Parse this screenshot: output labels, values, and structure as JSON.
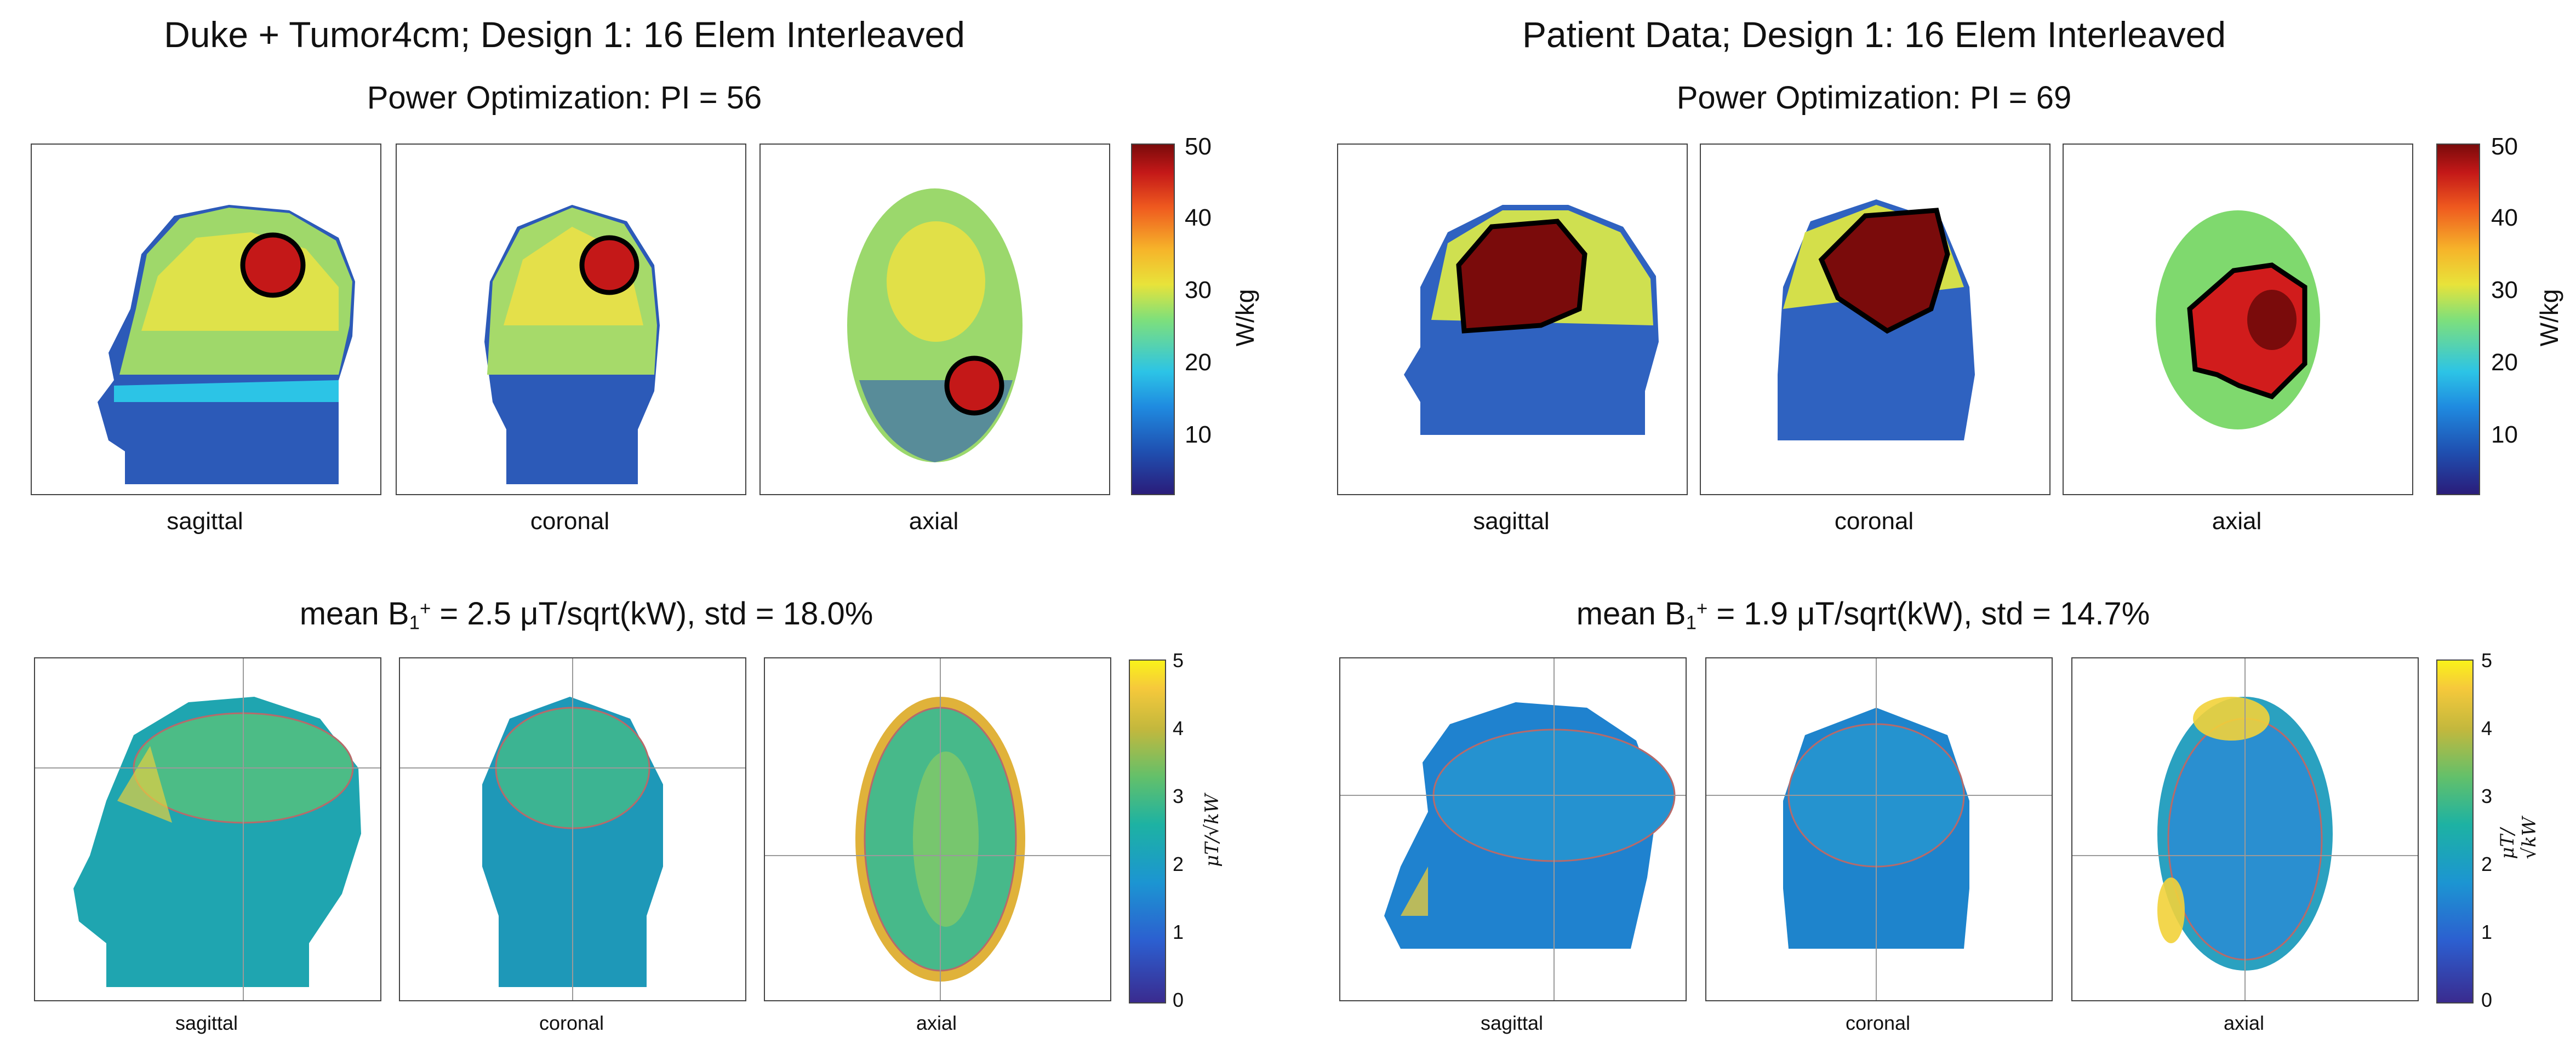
{
  "left": {
    "title": "Duke + Tumor4cm; Design 1: 16 Elem Interleaved",
    "power_title": "Power Optimization: PI = 56",
    "b1_title": {
      "prefix": "mean B",
      "sub": "1",
      "sup": "+",
      "suffix": " = 2.5 μT/sqrt(kW), std = 18.0%"
    },
    "views_top": [
      "sagittal",
      "coronal",
      "axial"
    ],
    "views_bottom": [
      "sagittal",
      "coronal",
      "axial"
    ]
  },
  "right": {
    "title": "Patient Data; Design 1: 16 Elem Interleaved",
    "power_title": "Power Optimization: PI = 69",
    "b1_title": {
      "prefix": "mean B",
      "sub": "1",
      "sup": "+",
      "suffix": " = 1.9 μT/sqrt(kW), std = 14.7%"
    },
    "views_top": [
      "sagittal",
      "coronal",
      "axial"
    ],
    "views_bottom": [
      "sagittal",
      "coronal",
      "axial"
    ]
  },
  "sar_colorbar": {
    "ticks": [
      "50",
      "40",
      "30",
      "20",
      "10"
    ],
    "unit": "W/kg"
  },
  "b1_colorbar": {
    "ticks": [
      "5",
      "4",
      "3",
      "2",
      "1",
      "0"
    ],
    "unit": "μT/√kW"
  },
  "colors": {
    "sar_high": "#7a0b0b",
    "sar_low": "#2a1c7a",
    "b1_high": "#f9f21a",
    "b1_low": "#3a2b8f",
    "tumor_outline": "#000000"
  }
}
